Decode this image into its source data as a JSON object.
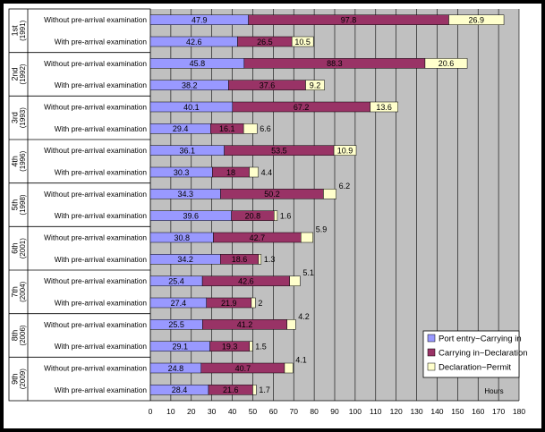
{
  "chart_data": {
    "type": "bar",
    "orientation": "horizontal",
    "stacked": true,
    "title": "",
    "xlabel": "Hours",
    "ylabel": "",
    "xlim": [
      0,
      180
    ],
    "x_ticks": [
      0,
      10,
      20,
      30,
      40,
      50,
      60,
      70,
      80,
      90,
      100,
      110,
      120,
      130,
      140,
      150,
      160,
      170,
      180
    ],
    "grid": "vertical lines at every x tick",
    "legend_position": "bottom-right",
    "series": [
      {
        "name": "Port entry~Carrying in",
        "color": "#9999ff"
      },
      {
        "name": "Carrying in~Declaration",
        "color": "#993366"
      },
      {
        "name": "Declaration~Permit",
        "color": "#ffffcc"
      }
    ],
    "groups": [
      {
        "name": "1st",
        "year": "(1991)",
        "rows": [
          {
            "label": "Without pre-arrival examination",
            "values": [
              47.9,
              97.8,
              26.9
            ]
          },
          {
            "label": "With pre-arrival examination",
            "values": [
              42.6,
              26.5,
              10.5
            ]
          }
        ]
      },
      {
        "name": "2nd",
        "year": "(1992)",
        "rows": [
          {
            "label": "Without pre-arrival examination",
            "values": [
              45.8,
              88.3,
              20.6
            ]
          },
          {
            "label": "With pre-arrival examination",
            "values": [
              38.2,
              37.6,
              9.2
            ]
          }
        ]
      },
      {
        "name": "3rd",
        "year": "(1993)",
        "rows": [
          {
            "label": "Without pre-arrival examination",
            "values": [
              40.1,
              67.2,
              13.6
            ]
          },
          {
            "label": "With pre-arrival examination",
            "values": [
              29.4,
              16.1,
              6.6
            ]
          }
        ]
      },
      {
        "name": "4th",
        "year": "(1996)",
        "rows": [
          {
            "label": "Without pre-arrival examination",
            "values": [
              36.1,
              53.5,
              10.9
            ]
          },
          {
            "label": "With pre-arrival examination",
            "values": [
              30.3,
              18,
              4.4
            ]
          }
        ]
      },
      {
        "name": "5th",
        "year": "(1998)",
        "rows": [
          {
            "label": "Without pre-arrival examination",
            "values": [
              34.3,
              50.2,
              6.2
            ]
          },
          {
            "label": "With pre-arrival examination",
            "values": [
              39.6,
              20.8,
              1.6
            ]
          }
        ]
      },
      {
        "name": "6th",
        "year": "(2001)",
        "rows": [
          {
            "label": "Without pre-arrival examination",
            "values": [
              30.8,
              42.7,
              5.9
            ]
          },
          {
            "label": "With pre-arrival examination",
            "values": [
              34.2,
              18.6,
              1.3
            ]
          }
        ]
      },
      {
        "name": "7th",
        "year": "(2004)",
        "rows": [
          {
            "label": "Without pre-arrival examination",
            "values": [
              25.4,
              42.6,
              5.1
            ]
          },
          {
            "label": "With pre-arrival examination",
            "values": [
              27.4,
              21.9,
              2
            ]
          }
        ]
      },
      {
        "name": "8th",
        "year": "(2006)",
        "rows": [
          {
            "label": "Without pre-arrival examination",
            "values": [
              25.5,
              41.2,
              4.2
            ]
          },
          {
            "label": "With pre-arrival examination",
            "values": [
              29.1,
              19.3,
              1.5
            ]
          }
        ]
      },
      {
        "name": "9th",
        "year": "(2009)",
        "rows": [
          {
            "label": "Without pre-arrival examination",
            "values": [
              24.8,
              40.7,
              4.1
            ]
          },
          {
            "label": "With pre-arrival examination",
            "values": [
              28.4,
              21.6,
              1.7
            ]
          }
        ]
      }
    ]
  }
}
